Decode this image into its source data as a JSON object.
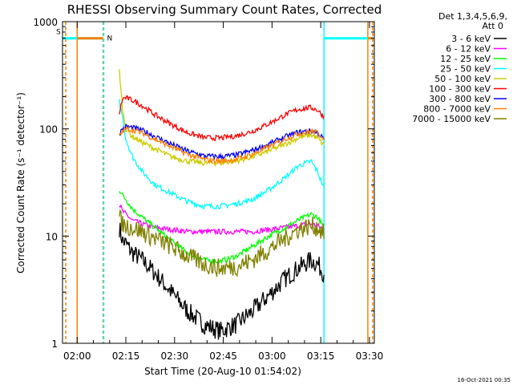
{
  "chart_data": {
    "type": "line",
    "title": "RHESSI Observing Summary Count Rates, Corrected",
    "xlabel": "Start Time (20-Aug-10 01:54:02)",
    "ylabel": "Corrected Count Rate (s⁻¹ detector⁻¹)",
    "yscale": "log",
    "ylim": [
      1,
      1000
    ],
    "xlim_minutes": [
      1.5,
      97.5
    ],
    "x_ticks": [
      {
        "m": 6,
        "label": "02:00"
      },
      {
        "m": 21,
        "label": "02:15"
      },
      {
        "m": 36,
        "label": "02:30"
      },
      {
        "m": 51,
        "label": "02:45"
      },
      {
        "m": 66,
        "label": "03:00"
      },
      {
        "m": 81,
        "label": "03:15"
      },
      {
        "m": 96,
        "label": "03:30"
      }
    ],
    "y_ticks": [
      {
        "v": 1,
        "label": "1"
      },
      {
        "v": 10,
        "label": "10"
      },
      {
        "v": 100,
        "label": "100"
      },
      {
        "v": 1000,
        "label": "1000"
      }
    ],
    "legend_header": [
      "Det 1,3,4,5,6,9,",
      "Att 0"
    ],
    "legend_position": "right",
    "annotations": [
      {
        "text": "S",
        "color": "#ff7f00"
      },
      {
        "text": "N",
        "color": "#00ffff"
      }
    ],
    "stamp": "16-Oct-2021 00:35",
    "x_minutes": [
      19,
      20,
      21,
      23,
      26,
      30,
      35,
      40,
      45,
      50,
      55,
      60,
      65,
      70,
      74,
      78,
      80,
      82
    ],
    "series": [
      {
        "name": "3 - 6 keV",
        "color": "#000000",
        "values": [
          12,
          9,
          8.5,
          7,
          6,
          4.5,
          3,
          2,
          1.5,
          1.3,
          1.5,
          2,
          2.8,
          4,
          5,
          6,
          5.5,
          4.5
        ]
      },
      {
        "name": "6 - 12 keV",
        "color": "#ff00ff",
        "values": [
          20,
          17,
          16,
          14,
          13,
          12,
          11.5,
          11,
          11,
          11,
          11,
          11,
          11.5,
          12,
          12.5,
          13,
          12.5,
          11.5
        ]
      },
      {
        "name": "12 - 25 keV",
        "color": "#00ff00",
        "values": [
          27,
          24,
          22,
          18,
          15,
          12,
          9,
          7,
          6,
          5.8,
          6.5,
          8,
          10,
          12,
          14,
          16,
          15,
          12
        ]
      },
      {
        "name": "25 - 50 keV",
        "color": "#00ffff",
        "values": [
          180,
          130,
          80,
          55,
          40,
          30,
          25,
          21,
          19,
          19,
          20,
          22,
          27,
          35,
          45,
          50,
          40,
          28
        ]
      },
      {
        "name": "50 - 100 keV",
        "color": "#cccc00",
        "values": [
          350,
          150,
          100,
          85,
          75,
          65,
          55,
          50,
          48,
          48,
          50,
          55,
          62,
          72,
          82,
          88,
          82,
          70
        ]
      },
      {
        "name": "100 - 300 keV",
        "color": "#ff0000",
        "values": [
          140,
          190,
          195,
          185,
          165,
          135,
          110,
          92,
          83,
          82,
          86,
          95,
          112,
          135,
          152,
          158,
          150,
          130
        ]
      },
      {
        "name": "300 - 800 keV",
        "color": "#0000ff",
        "values": [
          90,
          100,
          105,
          103,
          97,
          85,
          72,
          62,
          56,
          55,
          57,
          63,
          72,
          84,
          93,
          96,
          92,
          80
        ]
      },
      {
        "name": "800 - 7000 keV",
        "color": "#ff7f00",
        "values": [
          85,
          95,
          100,
          98,
          92,
          80,
          68,
          58,
          52,
          50,
          52,
          58,
          68,
          80,
          90,
          95,
          92,
          82
        ]
      },
      {
        "name": "7000 - 15000 keV",
        "color": "#808000",
        "values": [
          15,
          13,
          12.5,
          12,
          11,
          9.5,
          8,
          6.5,
          5.5,
          5,
          5.2,
          6,
          7.5,
          9.5,
          11.5,
          12.5,
          12,
          10.5
        ]
      }
    ],
    "attenuator_level": 700,
    "attenuator_segments": [
      {
        "x0": 1.5,
        "x1": 14,
        "color": "#00ffff"
      },
      {
        "x0": 6,
        "x1": 14,
        "color": "#ff7f00"
      },
      {
        "x0": 82,
        "x1": 97,
        "color": "#00ffff"
      },
      {
        "x0": 95.5,
        "x1": 97,
        "color": "#ff7f00"
      }
    ],
    "vertical_markers": [
      {
        "m": 2.5,
        "color": "#ff7f00",
        "dashed": true
      },
      {
        "m": 6,
        "color": "#ff7f00",
        "dashed": false
      },
      {
        "m": 14,
        "color": "#ff7f00",
        "dashed": true
      },
      {
        "m": 14.2,
        "color": "#00ffff",
        "dashed": true
      },
      {
        "m": 82,
        "color": "#00ffff",
        "dashed": false
      },
      {
        "m": 95.5,
        "color": "#ff7f00",
        "dashed": false
      },
      {
        "m": 97,
        "color": "#ff7f00",
        "dashed": true
      }
    ]
  }
}
